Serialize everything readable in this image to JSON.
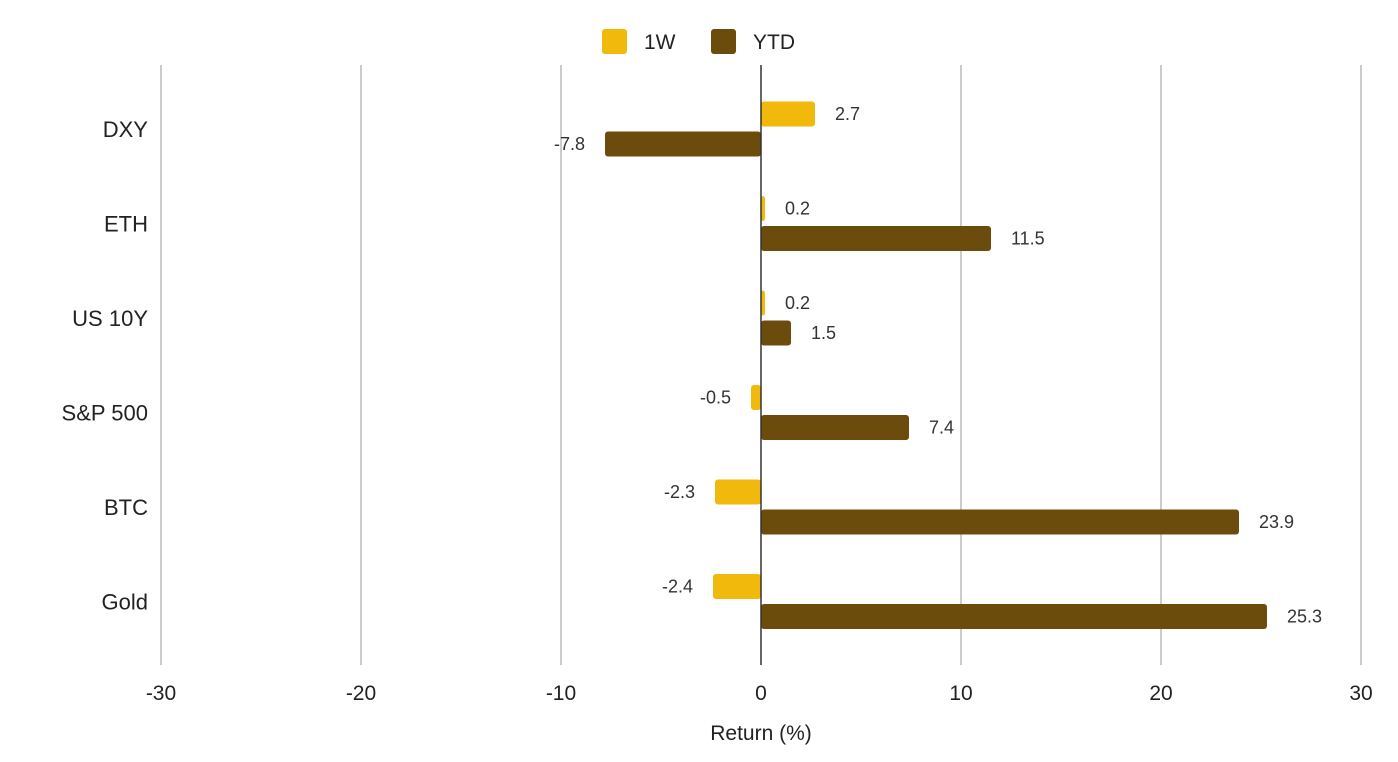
{
  "chart_data": {
    "type": "bar",
    "orientation": "horizontal",
    "categories": [
      "DXY",
      "ETH",
      "US 10Y",
      "S&P 500",
      "BTC",
      "Gold"
    ],
    "series": [
      {
        "name": "1W",
        "color": "#F0B90B",
        "values": [
          2.7,
          0.2,
          0.2,
          -0.5,
          -2.3,
          -2.4
        ]
      },
      {
        "name": "YTD",
        "color": "#6B4C0C",
        "values": [
          -7.8,
          11.5,
          1.5,
          7.4,
          23.9,
          25.3
        ]
      }
    ],
    "data_labels": [
      [
        "2.7",
        "0.2",
        "0.2",
        "-0.5",
        "-2.3",
        "-2.4"
      ],
      [
        "-7.8",
        "11.5",
        "1.5",
        "7.4",
        "23.9",
        "25.3"
      ]
    ],
    "xlabel": "Return (%)",
    "ylabel": "",
    "xlim": [
      -30,
      30
    ],
    "xticks": [
      -30,
      -20,
      -10,
      0,
      10,
      20,
      30
    ],
    "xtick_labels": [
      "-30",
      "-20",
      "-10",
      "0",
      "10",
      "20",
      "30"
    ],
    "grid": true,
    "legend": "top-center"
  }
}
